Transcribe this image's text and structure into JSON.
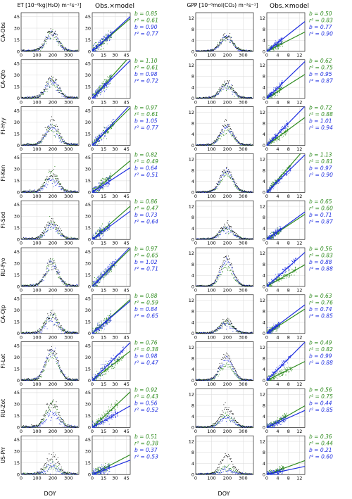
{
  "headers": {
    "et_ts": "ET [10⁻⁶kg(H₂O) m⁻²s⁻¹]",
    "et_sc": "Obs.×model",
    "gpp_ts": "GPP [10⁻⁶mol(CO₂) m⁻²s⁻¹]",
    "gpp_sc": "Obs.×model",
    "xlabel": "DOY"
  },
  "colors": {
    "obs": "#111111",
    "model_a": "#2e8b1e",
    "model_b": "#1f2fe0",
    "grid": "#d8d8d8"
  },
  "chart_data": {
    "type": "scatter",
    "axes": {
      "et_ts": {
        "xlim": [
          0,
          365
        ],
        "xticks": [
          "0",
          "100",
          "200",
          "300"
        ],
        "ylim": [
          0,
          50
        ],
        "yticks": [
          "0",
          "15",
          "30",
          "45"
        ]
      },
      "et_sc": {
        "xlim": [
          0,
          50
        ],
        "xticks": [
          "0",
          "15",
          "30",
          "45"
        ],
        "ylim": [
          0,
          50
        ],
        "yticks": [
          "0",
          "15",
          "30",
          "45"
        ]
      },
      "gpp_ts": {
        "xlim": [
          0,
          365
        ],
        "xticks": [
          "0",
          "100",
          "200",
          "300"
        ],
        "ylim": [
          0,
          14
        ],
        "yticks": [
          "0",
          "4",
          "8",
          "12"
        ]
      },
      "gpp_sc": {
        "xlim": [
          0,
          14
        ],
        "xticks": [
          "0",
          "4",
          "8",
          "12"
        ],
        "ylim": [
          0,
          14
        ],
        "yticks": [
          "0",
          "4",
          "8",
          "12"
        ]
      }
    },
    "sites": [
      {
        "name": "CA-Obs",
        "et": {
          "peak_obs": 25,
          "peak_a": 22,
          "peak_b": 21,
          "b_a": "0.85",
          "r2_a": "0.61",
          "b_b": "0.90",
          "r2_b": "0.77"
        },
        "gpp": {
          "peak_obs": 5.5,
          "peak_a": 4.8,
          "peak_b": 4.6,
          "b_a": "0.50",
          "r2_a": "0.83",
          "b_b": "0.77",
          "r2_b": "0.90"
        }
      },
      {
        "name": "CA-Qfo",
        "et": {
          "peak_obs": 24,
          "peak_a": 22,
          "peak_b": 20,
          "b_a": "1.10",
          "r2_a": "0.61",
          "b_b": "0.98",
          "r2_b": "0.72"
        },
        "gpp": {
          "peak_obs": 5.5,
          "peak_a": 4.8,
          "peak_b": 4.5,
          "b_a": "0.62",
          "r2_a": "0.75",
          "b_b": "0.95",
          "r2_b": "0.87"
        }
      },
      {
        "name": "FI-Hyy",
        "et": {
          "peak_obs": 28,
          "peak_a": 24,
          "peak_b": 23,
          "b_a": "0.97",
          "r2_a": "0.61",
          "b_b": "1.05",
          "r2_b": "0.77"
        },
        "gpp": {
          "peak_obs": 7.5,
          "peak_a": 5.5,
          "peak_b": 6.5,
          "b_a": "0.72",
          "r2_a": "0.88",
          "b_b": "1.01",
          "r2_b": "0.94"
        }
      },
      {
        "name": "FI-Ken",
        "et": {
          "peak_obs": 24,
          "peak_a": 22,
          "peak_b": 15,
          "b_a": "0.82",
          "r2_a": "0.49",
          "b_b": "0.64",
          "r2_b": "0.51"
        },
        "gpp": {
          "peak_obs": 8.5,
          "peak_a": 6.5,
          "peak_b": 7.5,
          "b_a": "1.13",
          "r2_a": "0.81",
          "b_b": "0.97",
          "r2_b": "0.90"
        }
      },
      {
        "name": "FI-Sod",
        "et": {
          "peak_obs": 22,
          "peak_a": 20,
          "peak_b": 16,
          "b_a": "0.86",
          "r2_a": "0.47",
          "b_b": "0.73",
          "r2_b": "0.64"
        },
        "gpp": {
          "peak_obs": 5.0,
          "peak_a": 3.8,
          "peak_b": 3.6,
          "b_a": "0.65",
          "r2_a": "0.60",
          "b_b": "0.71",
          "r2_b": "0.87"
        }
      },
      {
        "name": "RU-Fyo",
        "et": {
          "peak_obs": 30,
          "peak_a": 28,
          "peak_b": 29,
          "b_a": "0.97",
          "r2_a": "0.65",
          "b_b": "1.02",
          "r2_b": "0.71"
        },
        "gpp": {
          "peak_obs": 10.5,
          "peak_a": 7,
          "peak_b": 9,
          "b_a": "0.56",
          "r2_a": "0.83",
          "b_b": "0.88",
          "r2_b": "0.88"
        }
      },
      {
        "name": "CA-Ojp",
        "et": {
          "peak_obs": 24,
          "peak_a": 22,
          "peak_b": 18,
          "b_a": "0.88",
          "r2_a": "0.59",
          "b_b": "0.84",
          "r2_b": "0.65"
        },
        "gpp": {
          "peak_obs": 4.5,
          "peak_a": 3.8,
          "peak_b": 3.5,
          "b_a": "0.63",
          "r2_a": "0.76",
          "b_b": "0.74",
          "r2_b": "0.85"
        }
      },
      {
        "name": "FI-Let",
        "et": {
          "peak_obs": 40,
          "peak_a": 32,
          "peak_b": 38,
          "b_a": "0.76",
          "r2_a": "0.38",
          "b_b": "0.98",
          "r2_b": "0.47"
        },
        "gpp": {
          "peak_obs": 9,
          "peak_a": 5.5,
          "peak_b": 7.5,
          "b_a": "0.49",
          "r2_a": "0.82",
          "b_b": "0.99",
          "r2_b": "0.88"
        }
      },
      {
        "name": "RU-Zot",
        "et": {
          "peak_obs": 32,
          "peak_a": 28,
          "peak_b": 18,
          "b_a": "0.92",
          "r2_a": "0.43",
          "b_b": "0.56",
          "r2_b": "0.52"
        },
        "gpp": {
          "peak_obs": 7,
          "peak_a": 4.5,
          "peak_b": 3.5,
          "b_a": "0.56",
          "r2_a": "0.75",
          "b_b": "0.44",
          "r2_b": "0.85"
        }
      },
      {
        "name": "US-Prr",
        "et": {
          "peak_obs": 22,
          "peak_a": 12,
          "peak_b": 9,
          "b_a": "0.51",
          "r2_a": "0.38",
          "b_b": "0.37",
          "r2_b": "0.53"
        },
        "gpp": {
          "peak_obs": 6,
          "peak_a": 2.5,
          "peak_b": 1.5,
          "b_a": "0.36",
          "r2_a": "0.44",
          "b_b": "0.21",
          "r2_b": "0.60"
        }
      }
    ]
  }
}
